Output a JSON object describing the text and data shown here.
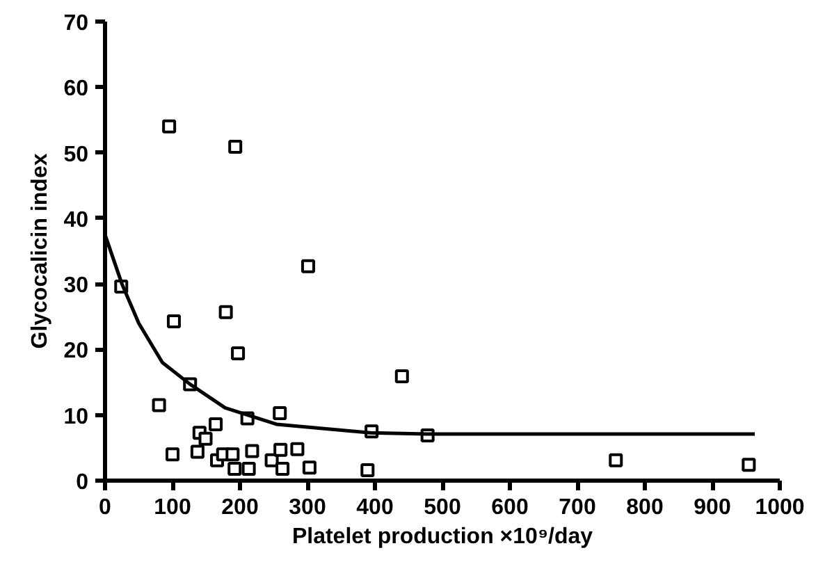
{
  "chart_data": {
    "type": "scatter",
    "xlabel": "Platelet production ×10⁹/day",
    "ylabel": "Glycocalicin index",
    "xlim": [
      0,
      1000
    ],
    "ylim": [
      0,
      70
    ],
    "xticks": [
      0,
      100,
      200,
      300,
      400,
      500,
      600,
      700,
      800,
      900,
      1000
    ],
    "yticks": [
      0,
      10,
      20,
      30,
      40,
      50,
      60,
      70
    ],
    "grid": false,
    "series": [
      {
        "marker": "square",
        "color": "#000000",
        "x": [
          24,
          102,
          179,
          197,
          301,
          126,
          80,
          440,
          164,
          140,
          149,
          211,
          259,
          395,
          478,
          100,
          137,
          166,
          175,
          189,
          192,
          213,
          218,
          247,
          260,
          263,
          285,
          303,
          389,
          95,
          193,
          757,
          954
        ],
        "values": [
          29.6,
          24.3,
          25.7,
          19.4,
          32.7,
          14.7,
          11.5,
          15.9,
          8.6,
          7.3,
          6.4,
          9.5,
          10.3,
          7.5,
          6.9,
          4.0,
          4.4,
          3.1,
          4.0,
          4.0,
          1.8,
          1.8,
          4.5,
          3.1,
          4.7,
          1.8,
          4.8,
          2.0,
          1.6,
          54.0,
          50.9,
          3.1,
          2.4
        ]
      },
      {
        "type": "line",
        "marker": "none",
        "color": "#000000",
        "line_style": "solid",
        "x": [
          0,
          25,
          50,
          85,
          126,
          178,
          254,
          393,
          478,
          963
        ],
        "values": [
          37.5,
          30,
          24,
          18,
          14.7,
          11.1,
          8.6,
          7.3,
          7.1,
          7.1
        ]
      }
    ]
  }
}
